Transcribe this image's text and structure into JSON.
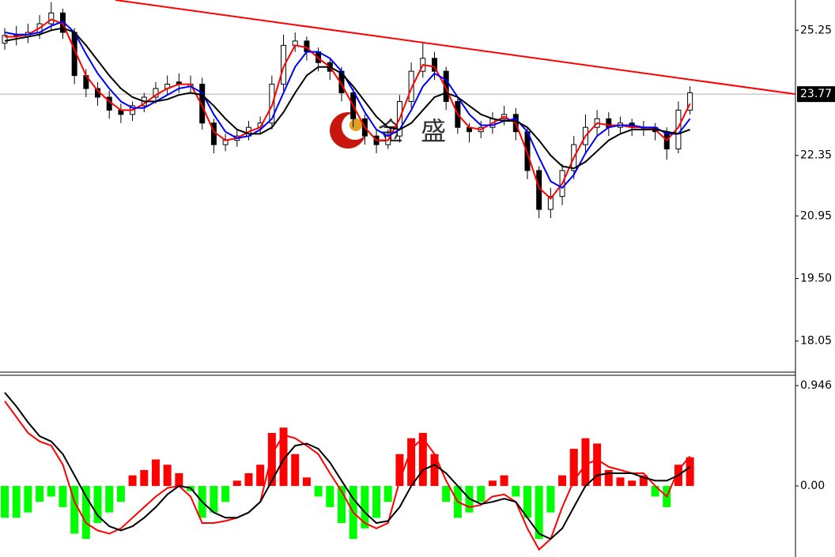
{
  "chart_data": [
    {
      "type": "candlestick",
      "xlim": [
        -0.41,
        68.08
      ],
      "ylim": [
        17.35,
        25.95
      ],
      "yticks": [
        25.25,
        22.35,
        20.95,
        {
          "value": 19.5,
          "label": "19.50"
        },
        18.05
      ],
      "open": [
        24.95,
        25.13,
        25.1,
        25.2,
        25.4,
        25.65,
        25.2,
        24.2,
        23.9,
        23.7,
        23.4,
        23.3,
        23.5,
        23.7,
        23.9,
        24.05,
        23.95,
        24.0,
        23.1,
        22.6,
        22.7,
        22.8,
        23.0,
        23.1,
        24.0,
        24.9,
        25.0,
        24.75,
        24.5,
        24.3,
        23.8,
        23.2,
        22.8,
        22.6,
        22.8,
        23.6,
        24.3,
        24.6,
        24.3,
        23.6,
        23.0,
        22.9,
        23.0,
        23.2,
        23.3,
        22.9,
        22.0,
        21.1,
        21.4,
        22.0,
        22.6,
        23.0,
        23.2,
        23.0,
        23.1,
        23.0,
        23.0,
        22.9,
        22.5,
        23.4
      ],
      "high": [
        25.3,
        25.35,
        25.4,
        25.6,
        25.9,
        25.75,
        25.3,
        24.35,
        24.05,
        23.85,
        23.55,
        23.6,
        23.8,
        24.05,
        24.2,
        24.25,
        24.2,
        24.15,
        23.2,
        22.85,
        22.95,
        23.15,
        23.25,
        24.2,
        25.15,
        25.2,
        25.1,
        24.85,
        24.6,
        24.4,
        23.9,
        23.3,
        22.95,
        22.95,
        23.75,
        24.5,
        24.95,
        24.75,
        24.4,
        23.7,
        23.1,
        23.15,
        23.35,
        23.5,
        23.45,
        23.0,
        22.1,
        21.6,
        22.15,
        22.8,
        23.3,
        23.4,
        23.35,
        23.25,
        23.2,
        23.15,
        23.1,
        23.0,
        23.6,
        23.95
      ],
      "low": [
        24.8,
        24.9,
        24.95,
        25.05,
        25.25,
        25.05,
        24.0,
        23.7,
        23.5,
        23.2,
        23.1,
        23.15,
        23.35,
        23.55,
        23.75,
        23.8,
        23.8,
        22.95,
        22.4,
        22.45,
        22.55,
        22.7,
        22.85,
        22.95,
        23.85,
        24.75,
        24.55,
        24.3,
        24.1,
        23.6,
        23.0,
        22.6,
        22.4,
        22.5,
        22.65,
        23.45,
        24.15,
        24.1,
        23.4,
        22.85,
        22.65,
        22.75,
        22.85,
        23.05,
        22.7,
        21.8,
        20.9,
        20.9,
        21.2,
        21.8,
        22.4,
        22.8,
        22.8,
        22.85,
        22.8,
        22.8,
        22.7,
        22.25,
        22.4,
        23.3
      ],
      "close": [
        25.13,
        25.1,
        25.2,
        25.4,
        25.65,
        25.2,
        24.2,
        23.9,
        23.7,
        23.4,
        23.3,
        23.5,
        23.7,
        23.9,
        24.0,
        24.0,
        24.0,
        23.1,
        22.6,
        22.7,
        22.8,
        23.0,
        23.1,
        24.0,
        24.9,
        25.0,
        24.75,
        24.5,
        24.3,
        23.8,
        23.2,
        22.8,
        22.6,
        22.8,
        23.6,
        24.3,
        24.6,
        24.3,
        23.6,
        23.0,
        22.9,
        23.0,
        23.2,
        23.3,
        22.9,
        22.0,
        21.1,
        21.4,
        22.0,
        22.6,
        23.0,
        23.2,
        23.0,
        23.1,
        23.0,
        23.0,
        22.9,
        22.5,
        23.4,
        23.8
      ],
      "series": [
        {
          "color": "#ff0000",
          "values": [
            25.1,
            25.1,
            25.15,
            25.3,
            25.5,
            25.4,
            24.8,
            24.2,
            23.85,
            23.6,
            23.4,
            23.4,
            23.55,
            23.75,
            23.9,
            24.0,
            24.0,
            23.5,
            22.9,
            22.7,
            22.75,
            22.9,
            23.0,
            23.5,
            24.4,
            24.9,
            24.85,
            24.6,
            24.4,
            24.0,
            23.5,
            23.0,
            22.7,
            22.7,
            23.2,
            23.9,
            24.45,
            24.4,
            23.9,
            23.3,
            23.0,
            22.95,
            23.1,
            23.25,
            23.1,
            22.4,
            21.6,
            21.35,
            21.7,
            22.3,
            22.8,
            23.1,
            23.05,
            23.05,
            23.0,
            23.0,
            22.95,
            22.7,
            23.0,
            23.55
          ]
        },
        {
          "color": "#0000ff",
          "values": [
            25.2,
            25.15,
            25.15,
            25.2,
            25.35,
            25.45,
            25.2,
            24.7,
            24.25,
            23.9,
            23.6,
            23.45,
            23.45,
            23.6,
            23.75,
            23.9,
            23.95,
            23.8,
            23.3,
            22.9,
            22.75,
            22.8,
            22.95,
            23.2,
            23.8,
            24.4,
            24.75,
            24.75,
            24.6,
            24.3,
            23.85,
            23.35,
            22.95,
            22.8,
            22.95,
            23.4,
            23.95,
            24.25,
            24.1,
            23.7,
            23.3,
            23.05,
            23.05,
            23.15,
            23.2,
            22.9,
            22.3,
            21.75,
            21.6,
            21.9,
            22.4,
            22.8,
            23.0,
            23.05,
            23.05,
            23.0,
            23.0,
            22.85,
            22.85,
            23.2
          ]
        },
        {
          "color": "#000000",
          "values": [
            25.0,
            25.05,
            25.1,
            25.15,
            25.25,
            25.3,
            25.2,
            24.9,
            24.55,
            24.2,
            23.9,
            23.7,
            23.6,
            23.6,
            23.65,
            23.75,
            23.8,
            23.75,
            23.5,
            23.2,
            22.95,
            22.85,
            22.85,
            23.0,
            23.35,
            23.8,
            24.2,
            24.4,
            24.4,
            24.25,
            23.95,
            23.6,
            23.25,
            23.0,
            22.95,
            23.1,
            23.4,
            23.7,
            23.8,
            23.7,
            23.5,
            23.3,
            23.2,
            23.15,
            23.15,
            23.0,
            22.7,
            22.35,
            22.1,
            22.05,
            22.2,
            22.45,
            22.7,
            22.85,
            22.95,
            22.95,
            22.95,
            22.9,
            22.85,
            22.95
          ]
        }
      ],
      "trendline": {
        "color": "#ff0000",
        "x": [
          9.52,
          68.08
        ],
        "y": [
          25.95,
          23.77
        ]
      },
      "last_price": 23.77,
      "watermark": "金 盛"
    },
    {
      "type": "macd",
      "xlim": [
        -0.41,
        68.08
      ],
      "ylim": [
        -0.67,
        1.036
      ],
      "yticks": [
        0.946,
        {
          "value": 0,
          "label": "0.00"
        }
      ],
      "positive_color": "#ff0000",
      "negative_color": "#00ff00",
      "values": [
        -0.3,
        -0.3,
        -0.25,
        -0.15,
        -0.1,
        -0.2,
        -0.45,
        -0.5,
        -0.35,
        -0.25,
        -0.15,
        0.1,
        0.15,
        0.25,
        0.2,
        0.12,
        -0.05,
        -0.3,
        -0.25,
        -0.15,
        0.05,
        0.12,
        0.2,
        0.5,
        0.55,
        0.3,
        0.08,
        -0.1,
        -0.2,
        -0.35,
        -0.5,
        -0.4,
        -0.3,
        -0.15,
        0.3,
        0.45,
        0.5,
        0.3,
        -0.15,
        -0.3,
        -0.25,
        -0.15,
        0.05,
        0.1,
        -0.1,
        -0.3,
        -0.5,
        -0.25,
        0.1,
        0.35,
        0.45,
        0.4,
        0.15,
        0.08,
        0.05,
        0.1,
        -0.1,
        -0.2,
        0.2,
        0.27
      ],
      "series": [
        {
          "color": "#ff0000",
          "values": [
            0.8,
            0.65,
            0.5,
            0.42,
            0.38,
            0.2,
            -0.15,
            -0.35,
            -0.42,
            -0.45,
            -0.4,
            -0.3,
            -0.2,
            -0.1,
            -0.02,
            0.0,
            -0.1,
            -0.35,
            -0.35,
            -0.33,
            -0.3,
            -0.25,
            -0.15,
            0.3,
            0.48,
            0.45,
            0.38,
            0.3,
            0.12,
            -0.05,
            -0.25,
            -0.35,
            -0.4,
            -0.35,
            0.05,
            0.35,
            0.45,
            0.3,
            0.05,
            -0.15,
            -0.2,
            -0.18,
            -0.1,
            -0.08,
            -0.15,
            -0.4,
            -0.6,
            -0.5,
            -0.2,
            0.05,
            0.2,
            0.25,
            0.18,
            0.15,
            0.12,
            0.12,
            0.0,
            -0.1,
            0.15,
            0.28
          ]
        },
        {
          "color": "#000000",
          "values": [
            0.88,
            0.75,
            0.6,
            0.47,
            0.42,
            0.3,
            0.1,
            -0.1,
            -0.28,
            -0.38,
            -0.42,
            -0.38,
            -0.3,
            -0.2,
            -0.08,
            0.0,
            -0.02,
            -0.15,
            -0.25,
            -0.3,
            -0.3,
            -0.25,
            -0.15,
            0.05,
            0.25,
            0.38,
            0.4,
            0.35,
            0.22,
            0.05,
            -0.12,
            -0.25,
            -0.35,
            -0.33,
            -0.2,
            0.0,
            0.15,
            0.2,
            0.12,
            0.0,
            -0.12,
            -0.17,
            -0.15,
            -0.12,
            -0.15,
            -0.3,
            -0.45,
            -0.5,
            -0.4,
            -0.2,
            0.0,
            0.1,
            0.12,
            0.12,
            0.12,
            0.08,
            0.05,
            0.05,
            0.1,
            0.18
          ]
        }
      ]
    }
  ]
}
